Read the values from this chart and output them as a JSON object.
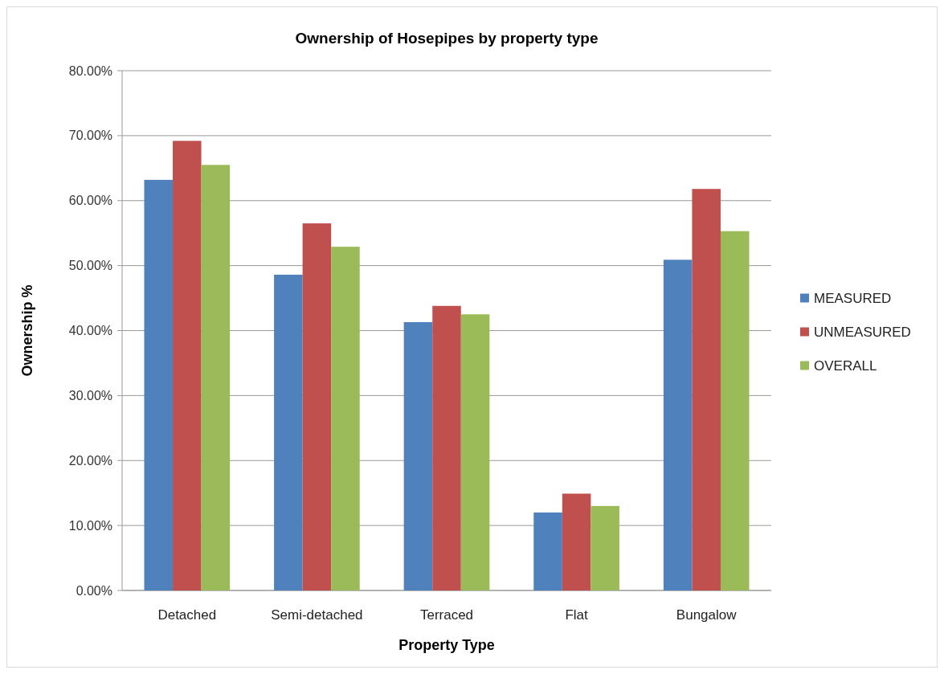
{
  "chart_data": {
    "type": "bar",
    "title": "Ownership of Hosepipes by property type",
    "xlabel": "Property Type",
    "ylabel": "Ownership %",
    "categories": [
      "Detached",
      "Semi-detached",
      "Terraced",
      "Flat",
      "Bungalow"
    ],
    "series": [
      {
        "name": "MEASURED",
        "color": "#4f81bd",
        "values": [
          63.2,
          48.6,
          41.3,
          12.0,
          50.9
        ]
      },
      {
        "name": "UNMEASURED",
        "color": "#c0504d",
        "values": [
          69.2,
          56.5,
          43.8,
          14.9,
          61.8
        ]
      },
      {
        "name": "OVERALL",
        "color": "#9bbb59",
        "values": [
          65.5,
          52.9,
          42.5,
          13.0,
          55.3
        ]
      }
    ],
    "ylim": [
      0,
      80
    ],
    "yticks": [
      {
        "value": 0,
        "label": "0.00%"
      },
      {
        "value": 10,
        "label": "10.00%"
      },
      {
        "value": 20,
        "label": "20.00%"
      },
      {
        "value": 30,
        "label": "30.00%"
      },
      {
        "value": 40,
        "label": "40.00%"
      },
      {
        "value": 50,
        "label": "50.00%"
      },
      {
        "value": 60,
        "label": "60.00%"
      },
      {
        "value": 70,
        "label": "70.00%"
      },
      {
        "value": 80,
        "label": "80.00%"
      }
    ],
    "grid": "y",
    "legend": "right"
  }
}
